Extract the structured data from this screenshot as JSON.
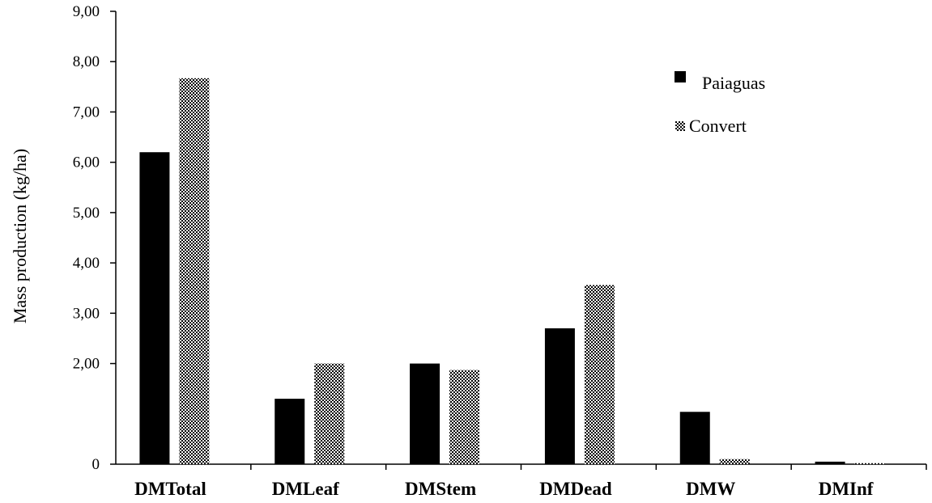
{
  "chart_data": {
    "type": "bar",
    "ylabel": "Mass production  (kg/ha)",
    "xlabel": "",
    "title": "",
    "ylim": [
      0,
      9
    ],
    "ytick_values": [
      0,
      2,
      3,
      4,
      5,
      6,
      7,
      8,
      9
    ],
    "ytick_labels": [
      "0",
      "2,00",
      "3,00",
      "4,00",
      "5,00",
      "6,00",
      "7,00",
      "8,00",
      "9,00"
    ],
    "categories": [
      "DMTotal",
      "DMLeaf",
      "DMStem",
      "DMDead",
      "DMW",
      "DMInf"
    ],
    "series": [
      {
        "name": "Paiaguas",
        "values": [
          6.2,
          1.3,
          2.0,
          2.7,
          1.04,
          0.05
        ],
        "color": "#000000",
        "pattern": "solid"
      },
      {
        "name": "Convert",
        "values": [
          7.67,
          2.0,
          1.87,
          3.56,
          0.1,
          0.02
        ],
        "color": "#000000",
        "pattern": "checker"
      }
    ],
    "legend_position": "top-right",
    "grid": false
  }
}
